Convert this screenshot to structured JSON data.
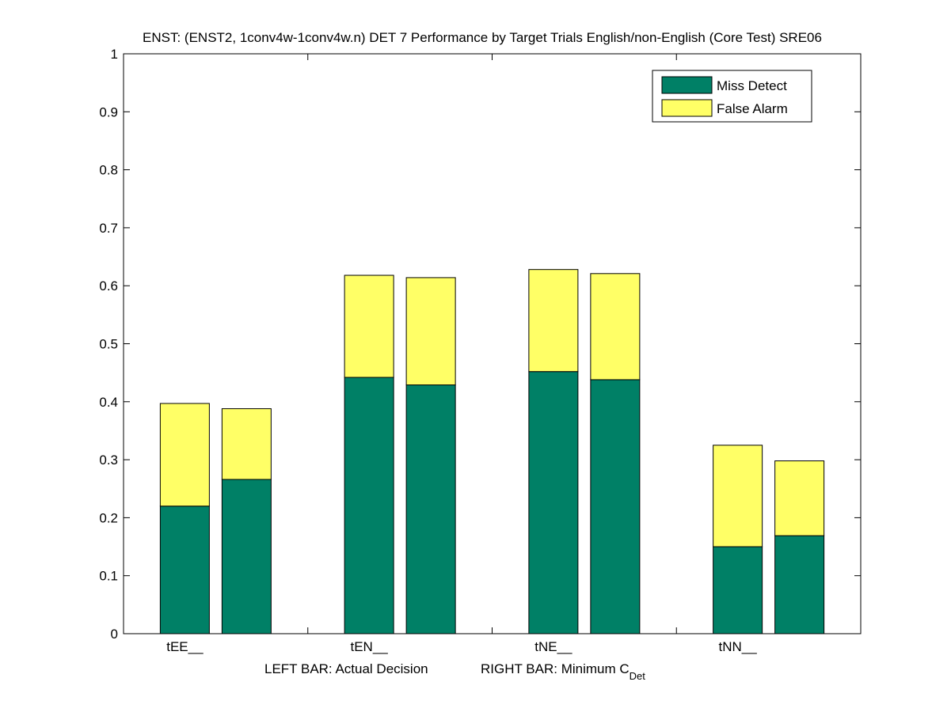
{
  "chart_data": {
    "type": "bar",
    "stacked": true,
    "title": "ENST: (ENST2, 1conv4w-1conv4w.n) DET 7 Performance by Target Trials English/non-English (Core Test) SRE06",
    "categories": [
      "tEE__",
      "tEN__",
      "tNE__",
      "tNN__"
    ],
    "bars_per_category": [
      "Actual Decision",
      "Minimum C_Det"
    ],
    "series": [
      {
        "name": "Miss Detect",
        "color": "#008066",
        "actual": [
          0.22,
          0.442,
          0.452,
          0.15
        ],
        "minimum": [
          0.266,
          0.429,
          0.438,
          0.169
        ]
      },
      {
        "name": "False Alarm",
        "color": "#ffff66",
        "actual": [
          0.177,
          0.176,
          0.176,
          0.175
        ],
        "minimum": [
          0.122,
          0.185,
          0.183,
          0.129
        ]
      }
    ],
    "xlabel_left": "LEFT BAR: Actual Decision",
    "xlabel_right_main": "RIGHT BAR: Minimum C",
    "xlabel_right_sub": "Det",
    "ylim": [
      0,
      1
    ],
    "yticks": [
      "0",
      "0.1",
      "0.2",
      "0.3",
      "0.4",
      "0.5",
      "0.6",
      "0.7",
      "0.8",
      "0.9",
      "1"
    ],
    "legend_position": "top-right",
    "grid": false
  }
}
